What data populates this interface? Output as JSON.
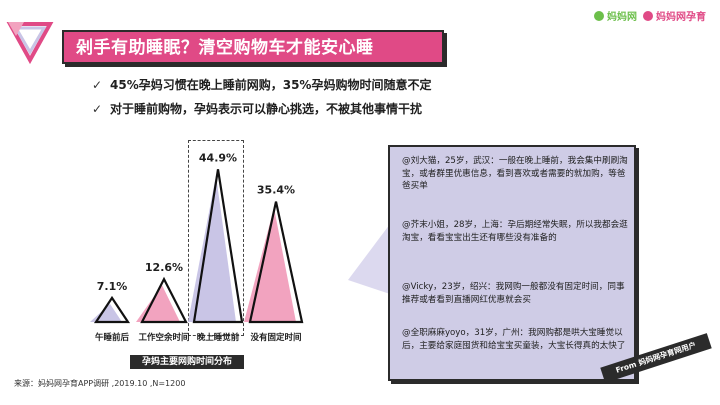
{
  "header": {
    "title": "剁手有助睡眠？清空购物车才能安心睡",
    "brand": [
      "妈妈网",
      "妈妈网孕育"
    ]
  },
  "bullets": [
    "45%孕妈习惯在晚上睡前网购，35%孕妈购物时间随意不定",
    "对于睡前购物，孕妈表示可以静心挑选，不被其他事情干扰"
  ],
  "icons": {
    "bullet": "check-icon",
    "logo": "triangle-logo-icon",
    "brand": "brand-logo-icon"
  },
  "colors": {
    "accent": "#e04a86",
    "pink": "#f2a3bf",
    "purple": "#c9c5e6",
    "card": "#cfcce6",
    "dark": "#2b2b2b"
  },
  "chart_data": {
    "type": "bar",
    "title": "孕妈主要网购时间分布",
    "categories": [
      "午睡前后",
      "工作空余时间",
      "晚上睡觉前",
      "没有固定时间"
    ],
    "values": [
      7.1,
      12.6,
      44.9,
      35.4
    ],
    "value_labels": [
      "7.1%",
      "12.6%",
      "44.9%",
      "35.4%"
    ],
    "ylim": [
      0,
      50
    ],
    "highlight": "晚上睡觉前"
  },
  "source": "来源：妈妈网孕育APP调研 ,2019.10 ,N=1200",
  "quotes": [
    "@刘大猫，25岁，武汉：一般在晚上睡前，我会集中刷刷淘宝，或者群里优惠信息，看到喜欢或者需要的就加购，等爸爸买单",
    "@芥末小姐，28岁，上海：孕后期经常失眠，所以我都会逛淘宝，看看宝宝出生还有哪些没有准备的",
    "@Vicky，23岁，绍兴：我网购一般都没有固定时间，同事推荐或者看到直播网红优惠就会买",
    "@全职麻麻yoyo，31岁，广州：我网购都是哄大宝睡觉以后，主要给家庭囤货和给宝宝买童装，大宝长得真的太快了"
  ],
  "from_tag": "From 妈妈网孕育网用户"
}
